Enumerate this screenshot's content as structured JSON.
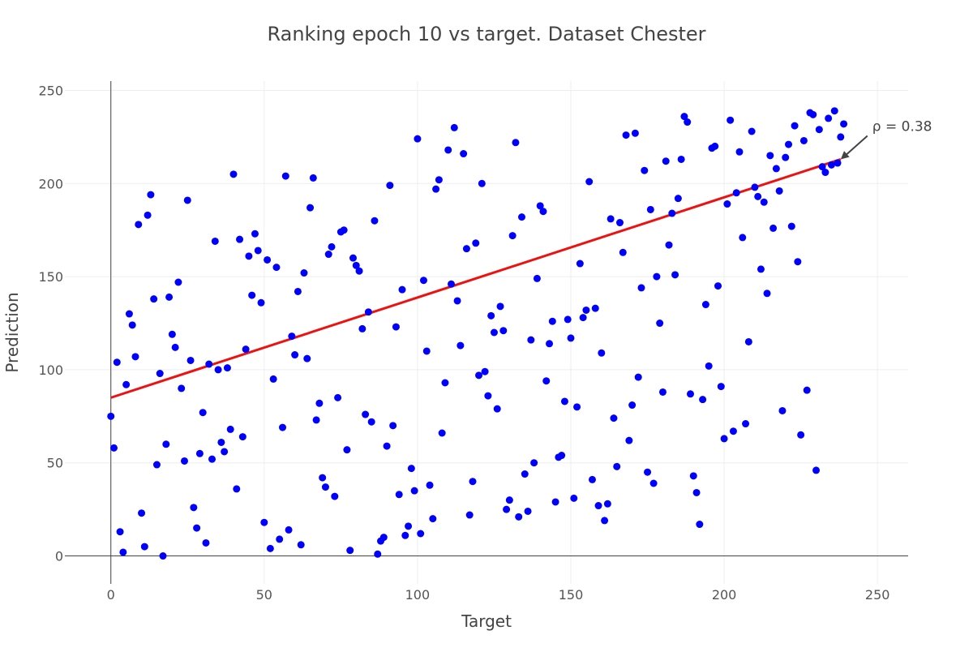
{
  "chart_data": {
    "type": "scatter",
    "title": "Ranking epoch 10 vs target. Dataset Chester",
    "xlabel": "Target",
    "ylabel": "Prediction",
    "xlim": [
      -15,
      260
    ],
    "ylim": [
      -15,
      255
    ],
    "xticks": [
      0,
      50,
      100,
      150,
      200,
      250
    ],
    "yticks": [
      0,
      50,
      100,
      150,
      200,
      250
    ],
    "grid": true,
    "point_color": "#0000ff",
    "line_color": "#ee1111",
    "trendline": {
      "x0": 0,
      "y0": 85,
      "x1": 238,
      "y1": 213
    },
    "annotation": {
      "text": "ρ = 0.38",
      "x": 238,
      "y": 213
    },
    "points": [
      [
        0,
        75
      ],
      [
        1,
        58
      ],
      [
        2,
        104
      ],
      [
        3,
        13
      ],
      [
        4,
        2
      ],
      [
        5,
        92
      ],
      [
        6,
        130
      ],
      [
        7,
        124
      ],
      [
        8,
        107
      ],
      [
        9,
        178
      ],
      [
        10,
        23
      ],
      [
        11,
        5
      ],
      [
        12,
        183
      ],
      [
        13,
        194
      ],
      [
        14,
        138
      ],
      [
        15,
        49
      ],
      [
        16,
        98
      ],
      [
        17,
        0
      ],
      [
        18,
        60
      ],
      [
        19,
        139
      ],
      [
        20,
        119
      ],
      [
        21,
        112
      ],
      [
        22,
        147
      ],
      [
        23,
        90
      ],
      [
        24,
        51
      ],
      [
        25,
        191
      ],
      [
        26,
        105
      ],
      [
        27,
        26
      ],
      [
        28,
        15
      ],
      [
        29,
        55
      ],
      [
        30,
        77
      ],
      [
        31,
        7
      ],
      [
        32,
        103
      ],
      [
        33,
        52
      ],
      [
        34,
        169
      ],
      [
        35,
        100
      ],
      [
        36,
        61
      ],
      [
        37,
        56
      ],
      [
        38,
        101
      ],
      [
        39,
        68
      ],
      [
        40,
        205
      ],
      [
        41,
        36
      ],
      [
        42,
        170
      ],
      [
        43,
        64
      ],
      [
        44,
        111
      ],
      [
        45,
        161
      ],
      [
        46,
        140
      ],
      [
        47,
        173
      ],
      [
        48,
        164
      ],
      [
        49,
        136
      ],
      [
        50,
        18
      ],
      [
        51,
        159
      ],
      [
        52,
        4
      ],
      [
        53,
        95
      ],
      [
        54,
        155
      ],
      [
        55,
        9
      ],
      [
        56,
        69
      ],
      [
        57,
        204
      ],
      [
        58,
        14
      ],
      [
        59,
        118
      ],
      [
        60,
        108
      ],
      [
        61,
        142
      ],
      [
        62,
        6
      ],
      [
        63,
        152
      ],
      [
        64,
        106
      ],
      [
        65,
        187
      ],
      [
        66,
        203
      ],
      [
        67,
        73
      ],
      [
        68,
        82
      ],
      [
        69,
        42
      ],
      [
        70,
        37
      ],
      [
        71,
        162
      ],
      [
        72,
        166
      ],
      [
        73,
        32
      ],
      [
        74,
        85
      ],
      [
        75,
        174
      ],
      [
        76,
        175
      ],
      [
        77,
        57
      ],
      [
        78,
        3
      ],
      [
        79,
        160
      ],
      [
        80,
        156
      ],
      [
        81,
        153
      ],
      [
        82,
        122
      ],
      [
        83,
        76
      ],
      [
        84,
        131
      ],
      [
        85,
        72
      ],
      [
        86,
        180
      ],
      [
        87,
        1
      ],
      [
        88,
        8
      ],
      [
        89,
        10
      ],
      [
        90,
        59
      ],
      [
        91,
        199
      ],
      [
        92,
        70
      ],
      [
        93,
        123
      ],
      [
        94,
        33
      ],
      [
        95,
        143
      ],
      [
        96,
        11
      ],
      [
        97,
        16
      ],
      [
        98,
        47
      ],
      [
        99,
        35
      ],
      [
        100,
        224
      ],
      [
        101,
        12
      ],
      [
        102,
        148
      ],
      [
        103,
        110
      ],
      [
        104,
        38
      ],
      [
        105,
        20
      ],
      [
        106,
        197
      ],
      [
        107,
        202
      ],
      [
        108,
        66
      ],
      [
        109,
        93
      ],
      [
        110,
        218
      ],
      [
        111,
        146
      ],
      [
        112,
        230
      ],
      [
        113,
        137
      ],
      [
        114,
        113
      ],
      [
        115,
        216
      ],
      [
        116,
        165
      ],
      [
        117,
        22
      ],
      [
        118,
        40
      ],
      [
        119,
        168
      ],
      [
        120,
        97
      ],
      [
        121,
        200
      ],
      [
        122,
        99
      ],
      [
        123,
        86
      ],
      [
        124,
        129
      ],
      [
        125,
        120
      ],
      [
        126,
        79
      ],
      [
        127,
        134
      ],
      [
        128,
        121
      ],
      [
        129,
        25
      ],
      [
        130,
        30
      ],
      [
        131,
        172
      ],
      [
        132,
        222
      ],
      [
        133,
        21
      ],
      [
        134,
        182
      ],
      [
        135,
        44
      ],
      [
        136,
        24
      ],
      [
        137,
        116
      ],
      [
        138,
        50
      ],
      [
        139,
        149
      ],
      [
        140,
        188
      ],
      [
        141,
        185
      ],
      [
        142,
        94
      ],
      [
        143,
        114
      ],
      [
        144,
        126
      ],
      [
        145,
        29
      ],
      [
        146,
        53
      ],
      [
        147,
        54
      ],
      [
        148,
        83
      ],
      [
        149,
        127
      ],
      [
        150,
        117
      ],
      [
        151,
        31
      ],
      [
        152,
        80
      ],
      [
        153,
        157
      ],
      [
        154,
        128
      ],
      [
        155,
        132
      ],
      [
        156,
        201
      ],
      [
        157,
        41
      ],
      [
        158,
        133
      ],
      [
        159,
        27
      ],
      [
        160,
        109
      ],
      [
        161,
        19
      ],
      [
        162,
        28
      ],
      [
        163,
        181
      ],
      [
        164,
        74
      ],
      [
        165,
        48
      ],
      [
        166,
        179
      ],
      [
        167,
        163
      ],
      [
        168,
        226
      ],
      [
        169,
        62
      ],
      [
        170,
        81
      ],
      [
        171,
        227
      ],
      [
        172,
        96
      ],
      [
        173,
        144
      ],
      [
        174,
        207
      ],
      [
        175,
        45
      ],
      [
        176,
        186
      ],
      [
        177,
        39
      ],
      [
        178,
        150
      ],
      [
        179,
        125
      ],
      [
        180,
        88
      ],
      [
        181,
        212
      ],
      [
        182,
        167
      ],
      [
        183,
        184
      ],
      [
        184,
        151
      ],
      [
        185,
        192
      ],
      [
        186,
        213
      ],
      [
        187,
        236
      ],
      [
        188,
        233
      ],
      [
        189,
        87
      ],
      [
        190,
        43
      ],
      [
        191,
        34
      ],
      [
        192,
        17
      ],
      [
        193,
        84
      ],
      [
        194,
        135
      ],
      [
        195,
        102
      ],
      [
        196,
        219
      ],
      [
        197,
        220
      ],
      [
        198,
        145
      ],
      [
        199,
        91
      ],
      [
        200,
        63
      ],
      [
        201,
        189
      ],
      [
        202,
        234
      ],
      [
        203,
        67
      ],
      [
        204,
        195
      ],
      [
        205,
        217
      ],
      [
        206,
        171
      ],
      [
        207,
        71
      ],
      [
        208,
        115
      ],
      [
        209,
        228
      ],
      [
        210,
        198
      ],
      [
        211,
        193
      ],
      [
        212,
        154
      ],
      [
        213,
        190
      ],
      [
        214,
        141
      ],
      [
        215,
        215
      ],
      [
        216,
        176
      ],
      [
        217,
        208
      ],
      [
        218,
        196
      ],
      [
        219,
        78
      ],
      [
        220,
        214
      ],
      [
        221,
        221
      ],
      [
        222,
        177
      ],
      [
        223,
        231
      ],
      [
        224,
        158
      ],
      [
        225,
        65
      ],
      [
        226,
        223
      ],
      [
        227,
        89
      ],
      [
        228,
        238
      ],
      [
        229,
        237
      ],
      [
        230,
        46
      ],
      [
        231,
        229
      ],
      [
        232,
        209
      ],
      [
        233,
        206
      ],
      [
        234,
        235
      ],
      [
        235,
        210
      ],
      [
        236,
        239
      ],
      [
        237,
        211
      ],
      [
        238,
        225
      ],
      [
        239,
        232
      ]
    ]
  }
}
